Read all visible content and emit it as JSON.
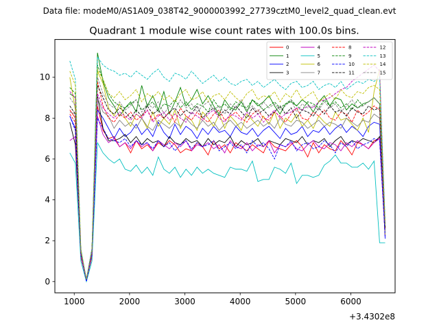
{
  "suptitle": "Data file: modeM0/AS1A09_038T42_9000003992_27739cztM0_level2_quad_clean.evt",
  "chart_data": {
    "type": "line",
    "title": "Quadrant 1 module wise count rates with 100.0s bins.",
    "xlabel": "",
    "ylabel": "",
    "x_offset_label": "+3.4302e8",
    "xlim": [
      650,
      6800
    ],
    "ylim": [
      -0.55,
      11.85
    ],
    "xticks": [
      1000,
      2000,
      3000,
      4000,
      5000,
      6000
    ],
    "yticks": [
      0,
      2,
      4,
      6,
      8,
      10
    ],
    "grid": false,
    "legend": {
      "placement": "top-right",
      "columns": 4
    },
    "x_start": 920,
    "x_step": 100,
    "series": [
      {
        "name": "0",
        "color": "#ff0000",
        "dash": "solid",
        "values": [
          8.4,
          8.0,
          1.2,
          0.1,
          1.2,
          8.6,
          7.4,
          7.0,
          7.1,
          6.6,
          6.8,
          6.3,
          6.9,
          6.5,
          6.7,
          6.4,
          6.8,
          6.6,
          6.9,
          6.7,
          6.3,
          6.5,
          6.4,
          6.8,
          6.6,
          6.2,
          6.9,
          6.5,
          6.7,
          6.3,
          6.8,
          6.6,
          6.4,
          6.7,
          6.5,
          6.3,
          6.9,
          6.6,
          6.5,
          6.4,
          6.7,
          6.9,
          6.6,
          6.1,
          6.8,
          6.3,
          6.7,
          6.5,
          6.4,
          6.9,
          6.6,
          6.2,
          6.8,
          6.7,
          6.5,
          6.9,
          7.0,
          2.3
        ]
      },
      {
        "name": "1",
        "color": "#008000",
        "dash": "solid",
        "values": [
          9.2,
          9.0,
          1.4,
          0.1,
          1.4,
          11.2,
          9.8,
          9.0,
          8.6,
          8.1,
          8.5,
          8.8,
          8.3,
          9.6,
          8.6,
          9.1,
          8.4,
          9.3,
          8.2,
          8.8,
          9.5,
          8.6,
          8.9,
          9.4,
          8.7,
          9.1,
          8.6,
          8.2,
          8.9,
          8.5,
          8.4,
          8.8,
          8.3,
          8.9,
          8.6,
          8.8,
          9.1,
          8.6,
          8.2,
          8.7,
          8.8,
          8.6,
          8.9,
          8.7,
          8.3,
          8.8,
          9.1,
          8.6,
          9.0,
          8.9,
          8.4,
          8.7,
          8.5,
          8.7,
          8.8,
          9.0,
          8.7,
          2.7
        ]
      },
      {
        "name": "2",
        "color": "#0000ff",
        "dash": "solid",
        "values": [
          8.1,
          7.5,
          1.5,
          0.1,
          1.4,
          8.4,
          8.0,
          7.5,
          7.0,
          7.5,
          7.1,
          7.3,
          7.7,
          7.2,
          7.5,
          7.1,
          7.8,
          7.3,
          7.0,
          7.7,
          7.2,
          7.6,
          7.4,
          7.0,
          7.5,
          7.2,
          7.6,
          7.3,
          7.4,
          7.1,
          7.6,
          7.3,
          7.2,
          7.5,
          7.1,
          7.4,
          7.6,
          7.3,
          7.0,
          7.5,
          7.2,
          7.3,
          7.6,
          7.1,
          7.4,
          7.3,
          7.6,
          7.2,
          7.5,
          7.7,
          7.3,
          7.6,
          7.4,
          7.1,
          7.6,
          7.8,
          7.7,
          2.1
        ]
      },
      {
        "name": "3",
        "color": "#000000",
        "dash": "solid",
        "values": [
          7.8,
          6.7,
          1.5,
          0.1,
          1.6,
          9.1,
          7.5,
          6.9,
          6.9,
          7.0,
          7.2,
          6.8,
          7.1,
          6.7,
          7.0,
          6.8,
          6.9,
          6.6,
          7.1,
          6.8,
          6.7,
          7.0,
          6.8,
          6.9,
          6.6,
          7.0,
          6.7,
          6.9,
          6.8,
          7.1,
          6.6,
          6.9,
          6.7,
          6.8,
          7.0,
          6.6,
          6.9,
          6.8,
          6.7,
          7.0,
          6.9,
          6.8,
          7.1,
          6.7,
          6.9,
          6.8,
          7.0,
          6.6,
          6.9,
          7.1,
          6.7,
          6.9,
          6.8,
          7.0,
          6.9,
          6.8,
          7.1,
          2.5
        ]
      },
      {
        "name": "4",
        "color": "#bf00bf",
        "dash": "solid",
        "values": [
          6.9,
          7.1,
          1.5,
          0.1,
          1.3,
          8.1,
          7.2,
          6.8,
          7.0,
          6.6,
          6.8,
          6.5,
          6.9,
          6.6,
          6.8,
          6.4,
          6.9,
          6.7,
          6.5,
          6.8,
          6.6,
          6.9,
          6.4,
          6.7,
          6.6,
          6.8,
          6.5,
          6.7,
          6.3,
          6.9,
          6.6,
          6.5,
          6.8,
          6.4,
          6.7,
          6.6,
          6.9,
          6.3,
          6.7,
          6.6,
          6.8,
          6.5,
          6.4,
          6.7,
          6.9,
          6.6,
          6.5,
          6.8,
          6.7,
          6.4,
          6.8,
          6.6,
          6.9,
          6.7,
          6.5,
          6.8,
          7.0,
          2.2
        ]
      },
      {
        "name": "5",
        "color": "#00bfbf",
        "dash": "solid",
        "values": [
          6.3,
          5.8,
          1.0,
          0.0,
          1.0,
          6.8,
          6.3,
          6.0,
          5.8,
          6.0,
          5.5,
          5.4,
          5.7,
          5.3,
          5.6,
          5.2,
          6.1,
          5.5,
          5.3,
          5.6,
          5.1,
          5.5,
          5.2,
          5.6,
          5.3,
          5.5,
          5.3,
          5.2,
          5.1,
          5.6,
          5.5,
          5.5,
          5.4,
          5.9,
          4.9,
          5.0,
          5.0,
          5.6,
          5.5,
          5.3,
          5.8,
          4.8,
          5.2,
          5.2,
          5.1,
          5.2,
          5.7,
          5.9,
          6.2,
          5.8,
          5.8,
          5.6,
          5.6,
          5.8,
          5.5,
          5.9,
          1.9,
          1.9
        ]
      },
      {
        "name": "6",
        "color": "#bfbf00",
        "dash": "solid",
        "values": [
          10.0,
          8.4,
          1.6,
          0.1,
          1.5,
          10.3,
          9.7,
          8.5,
          8.1,
          8.7,
          8.0,
          7.6,
          8.2,
          8.0,
          7.5,
          8.3,
          7.6,
          8.0,
          7.7,
          8.4,
          7.5,
          8.1,
          7.9,
          7.4,
          8.3,
          8.0,
          7.6,
          8.2,
          7.5,
          8.1,
          7.8,
          7.4,
          8.2,
          7.9,
          7.6,
          8.1,
          7.7,
          8.3,
          7.5,
          8.0,
          7.8,
          8.2,
          7.6,
          7.9,
          7.5,
          8.1,
          7.8,
          7.6,
          8.3,
          7.9,
          8.0,
          7.7,
          7.4,
          8.0,
          7.3,
          9.3,
          10.4,
          2.3
        ]
      },
      {
        "name": "7",
        "color": "#808080",
        "dash": "solid",
        "values": [
          8.3,
          8.2,
          1.4,
          0.1,
          1.4,
          9.0,
          8.3,
          8.1,
          7.5,
          7.9,
          7.6,
          7.8,
          7.5,
          8.0,
          7.6,
          7.4,
          7.9,
          7.7,
          7.5,
          7.8,
          7.6,
          8.0,
          7.7,
          7.5,
          7.9,
          7.6,
          7.8,
          7.4,
          7.7,
          7.9,
          7.6,
          7.8,
          7.5,
          7.7,
          7.9,
          7.6,
          7.8,
          7.5,
          8.0,
          7.7,
          7.6,
          7.9,
          7.8,
          7.5,
          7.7,
          7.9,
          7.6,
          7.8,
          7.7,
          7.5,
          8.0,
          7.8,
          7.6,
          7.9,
          7.8,
          8.2,
          8.0,
          2.4
        ]
      },
      {
        "name": "8",
        "color": "#ff0000",
        "dash": "dashed",
        "values": [
          8.2,
          7.8,
          1.3,
          0.1,
          1.3,
          9.8,
          8.6,
          8.0,
          7.8,
          8.2,
          8.0,
          8.3,
          7.9,
          8.1,
          8.4,
          7.9,
          8.2,
          8.0,
          8.3,
          7.8,
          8.5,
          8.1,
          7.9,
          8.3,
          8.0,
          7.8,
          8.2,
          8.4,
          7.9,
          8.1,
          8.3,
          8.0,
          7.8,
          8.2,
          8.4,
          8.0,
          7.9,
          8.3,
          8.1,
          7.8,
          8.2,
          8.5,
          8.0,
          7.9,
          8.3,
          8.1,
          8.4,
          8.0,
          7.9,
          8.3,
          8.2,
          7.8,
          8.4,
          8.1,
          8.3,
          8.6,
          8.4,
          2.6
        ]
      },
      {
        "name": "9",
        "color": "#008000",
        "dash": "dashed",
        "values": [
          9.5,
          9.2,
          1.4,
          0.1,
          1.5,
          10.6,
          9.9,
          9.2,
          8.8,
          8.6,
          8.5,
          8.7,
          8.9,
          8.4,
          8.6,
          8.8,
          8.3,
          8.7,
          8.6,
          8.9,
          8.5,
          8.8,
          8.4,
          8.7,
          8.6,
          8.3,
          8.9,
          8.5,
          8.7,
          8.4,
          8.8,
          8.6,
          8.5,
          8.9,
          8.7,
          8.4,
          8.6,
          8.8,
          8.5,
          8.7,
          8.9,
          8.6,
          8.4,
          8.8,
          8.7,
          8.5,
          8.9,
          8.6,
          8.8,
          8.5,
          8.7,
          8.4,
          8.9,
          8.6,
          8.8,
          9.0,
          8.7,
          2.8
        ]
      },
      {
        "name": "10",
        "color": "#0000ff",
        "dash": "dashed",
        "values": [
          8.1,
          7.4,
          1.3,
          0.0,
          1.3,
          8.0,
          7.5,
          7.0,
          6.9,
          6.8,
          7.0,
          6.6,
          6.9,
          6.7,
          6.8,
          6.5,
          6.9,
          6.6,
          6.8,
          6.4,
          6.7,
          6.9,
          6.5,
          6.8,
          6.6,
          6.7,
          6.9,
          6.4,
          6.6,
          6.8,
          6.5,
          6.7,
          6.3,
          6.9,
          6.6,
          6.8,
          6.5,
          6.0,
          6.7,
          6.6,
          6.9,
          6.4,
          6.7,
          6.8,
          6.5,
          6.6,
          6.9,
          6.7,
          6.3,
          6.8,
          6.6,
          6.9,
          6.5,
          6.7,
          6.8,
          7.0,
          6.9,
          2.2
        ]
      },
      {
        "name": "11",
        "color": "#000000",
        "dash": "dashed",
        "values": [
          8.6,
          8.2,
          1.4,
          0.1,
          1.5,
          9.6,
          9.0,
          8.4,
          8.2,
          8.5,
          8.3,
          8.0,
          8.4,
          8.1,
          8.6,
          8.2,
          8.4,
          8.0,
          8.3,
          8.5,
          8.1,
          8.4,
          8.2,
          8.6,
          8.0,
          8.3,
          8.5,
          8.1,
          8.4,
          8.2,
          8.6,
          8.3,
          8.0,
          8.5,
          8.2,
          8.4,
          8.1,
          8.3,
          8.6,
          8.2,
          8.5,
          8.0,
          8.4,
          8.3,
          8.1,
          8.5,
          8.2,
          8.6,
          8.3,
          8.4,
          8.1,
          8.5,
          8.3,
          8.2,
          8.6,
          8.4,
          8.5,
          2.6
        ]
      },
      {
        "name": "12",
        "color": "#bf00bf",
        "dash": "dashed",
        "values": [
          9.3,
          9.0,
          1.3,
          0.1,
          1.4,
          9.2,
          8.5,
          8.2,
          8.0,
          8.3,
          8.1,
          7.9,
          8.2,
          8.0,
          8.4,
          7.8,
          8.1,
          8.3,
          7.9,
          8.2,
          8.0,
          7.8,
          8.3,
          8.1,
          7.9,
          8.2,
          8.4,
          8.0,
          7.8,
          8.2,
          8.1,
          7.9,
          8.3,
          8.0,
          8.2,
          7.8,
          8.1,
          8.4,
          8.0,
          8.2,
          8.3,
          8.5,
          8.4,
          8.6,
          8.5,
          8.8,
          8.9,
          9.0,
          9.2,
          9.4,
          9.5,
          9.8,
          10.0,
          10.2,
          10.4,
          10.6,
          10.3,
          2.9
        ]
      },
      {
        "name": "13",
        "color": "#00bfbf",
        "dash": "dashed",
        "values": [
          10.8,
          9.9,
          1.6,
          0.1,
          1.6,
          11.0,
          10.6,
          10.4,
          10.3,
          10.1,
          10.2,
          10.0,
          10.3,
          10.1,
          9.9,
          10.2,
          10.4,
          10.0,
          9.8,
          10.2,
          10.1,
          9.9,
          10.3,
          10.0,
          9.7,
          9.9,
          10.1,
          9.8,
          10.0,
          9.7,
          9.6,
          9.8,
          9.9,
          9.6,
          9.8,
          9.5,
          9.7,
          9.9,
          9.6,
          9.4,
          9.7,
          9.8,
          9.5,
          9.6,
          9.8,
          9.4,
          9.6,
          9.7,
          9.5,
          9.8,
          9.4,
          9.6,
          9.8,
          9.7,
          9.9,
          9.8,
          10.0,
          3.0
        ]
      },
      {
        "name": "14",
        "color": "#bfbf00",
        "dash": "dashed",
        "values": [
          10.3,
          9.6,
          1.5,
          0.1,
          1.5,
          10.4,
          9.9,
          9.2,
          9.0,
          9.3,
          8.9,
          9.1,
          9.4,
          8.8,
          9.2,
          9.0,
          9.3,
          8.9,
          9.1,
          8.8,
          9.2,
          9.4,
          8.9,
          9.0,
          9.3,
          8.8,
          9.1,
          9.2,
          8.9,
          9.3,
          9.0,
          8.8,
          9.2,
          9.4,
          8.9,
          9.1,
          9.0,
          9.3,
          8.8,
          9.2,
          9.0,
          9.4,
          8.9,
          9.1,
          9.3,
          8.8,
          9.0,
          9.2,
          8.9,
          9.4,
          9.1,
          9.0,
          9.3,
          9.2,
          9.5,
          9.6,
          9.4,
          2.9
        ]
      },
      {
        "name": "15",
        "color": "#808080",
        "dash": "dashed",
        "values": [
          9.0,
          8.6,
          1.5,
          0.1,
          1.5,
          10.0,
          9.2,
          8.7,
          8.5,
          8.8,
          8.4,
          8.6,
          8.9,
          8.3,
          8.7,
          8.5,
          8.8,
          8.2,
          8.6,
          8.4,
          8.9,
          8.5,
          8.7,
          8.3,
          8.6,
          8.8,
          8.4,
          8.6,
          8.2,
          8.7,
          8.5,
          8.9,
          8.4,
          8.6,
          8.3,
          8.8,
          8.5,
          8.7,
          8.4,
          8.6,
          8.9,
          8.3,
          8.7,
          8.5,
          8.6,
          8.4,
          8.8,
          8.5,
          8.7,
          8.3,
          8.6,
          8.9,
          8.5,
          8.6,
          8.8,
          9.0,
          8.7,
          2.7
        ]
      }
    ]
  }
}
